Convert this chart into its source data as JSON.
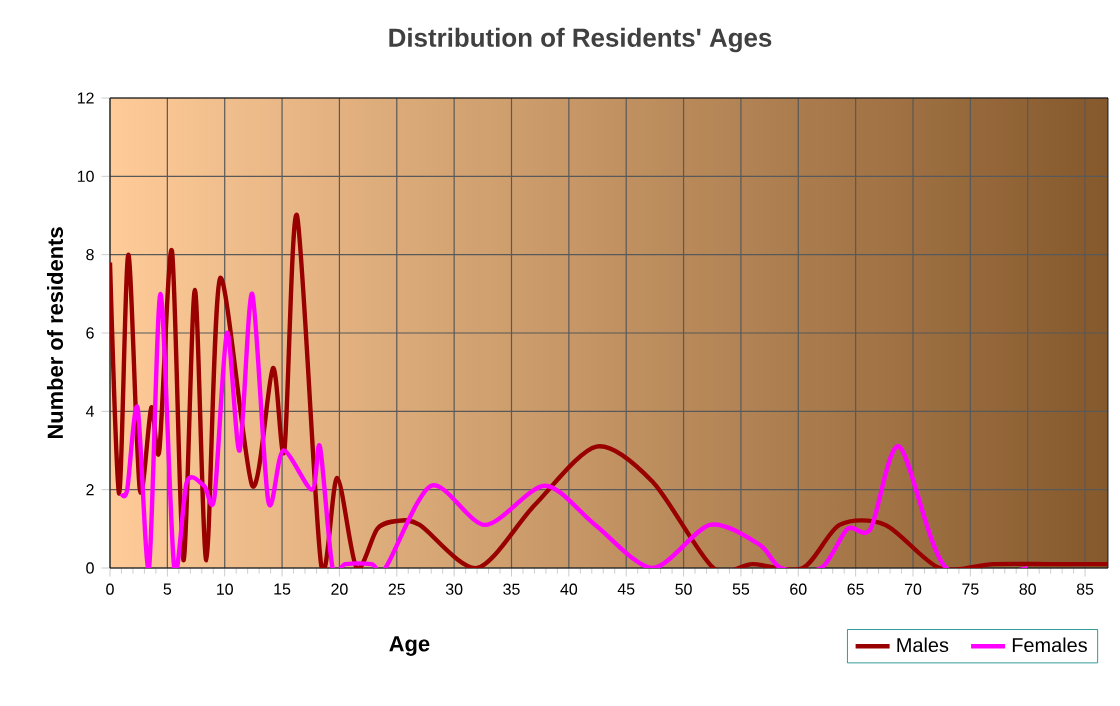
{
  "chart_data": {
    "type": "line",
    "title": "Distribution of Residents' Ages",
    "xlabel": "Age",
    "ylabel": "Number of residents",
    "xlim": [
      0,
      87
    ],
    "xticks": [
      0,
      5,
      10,
      15,
      20,
      25,
      30,
      35,
      40,
      45,
      50,
      55,
      60,
      65,
      70,
      75,
      80,
      85
    ],
    "ylim": [
      0,
      12
    ],
    "yticks": [
      0,
      2,
      4,
      6,
      8,
      10,
      12
    ],
    "grid": true,
    "legend": "bottom right",
    "series": [
      {
        "name": "Males",
        "color": "#990000",
        "x": [
          0,
          0.8,
          1.6,
          2.6,
          3.6,
          4.3,
          5.4,
          6.4,
          7.4,
          8.4,
          9.6,
          12.4,
          14.2,
          15.2,
          16.3,
          18.4,
          19.8,
          21.5,
          23.3,
          25,
          27,
          32,
          37,
          42.4,
          47.3,
          52.6,
          56,
          60.4,
          63.6,
          67.6,
          72.3,
          77,
          82,
          87
        ],
        "values": [
          7.8,
          1.9,
          8,
          2,
          4.1,
          3,
          8.1,
          0.2,
          7.1,
          0.2,
          7.4,
          2.1,
          5.1,
          3,
          9,
          0.1,
          2.3,
          0,
          1,
          1.2,
          1.1,
          0,
          1.6,
          3.1,
          2.2,
          0,
          0.1,
          0,
          1.1,
          1.1,
          0,
          0.1,
          0.1,
          0.1
        ]
      },
      {
        "name": "Females",
        "color": "#ff00ff",
        "x": [
          1,
          1.5,
          2.4,
          3.4,
          4.4,
          5.6,
          6.7,
          8.2,
          9.1,
          10.2,
          11.3,
          12.4,
          13.8,
          15.1,
          17.6,
          18.3,
          19.4,
          20.5,
          22.8,
          24,
          28,
          32.7,
          37.9,
          42.3,
          47.3,
          52.3,
          56.6,
          58.5,
          62,
          64.3,
          66.3,
          68.8,
          72.9,
          80
        ],
        "values": [
          1.9,
          2,
          4.1,
          0,
          7,
          0,
          2.2,
          2.1,
          1.8,
          6,
          3,
          7,
          1.7,
          3,
          2,
          3.1,
          0,
          0.1,
          0.1,
          0,
          2.1,
          1.1,
          2.1,
          1.1,
          0,
          1.1,
          0.6,
          0,
          0,
          1,
          1,
          3.1,
          0,
          0
        ]
      }
    ]
  }
}
